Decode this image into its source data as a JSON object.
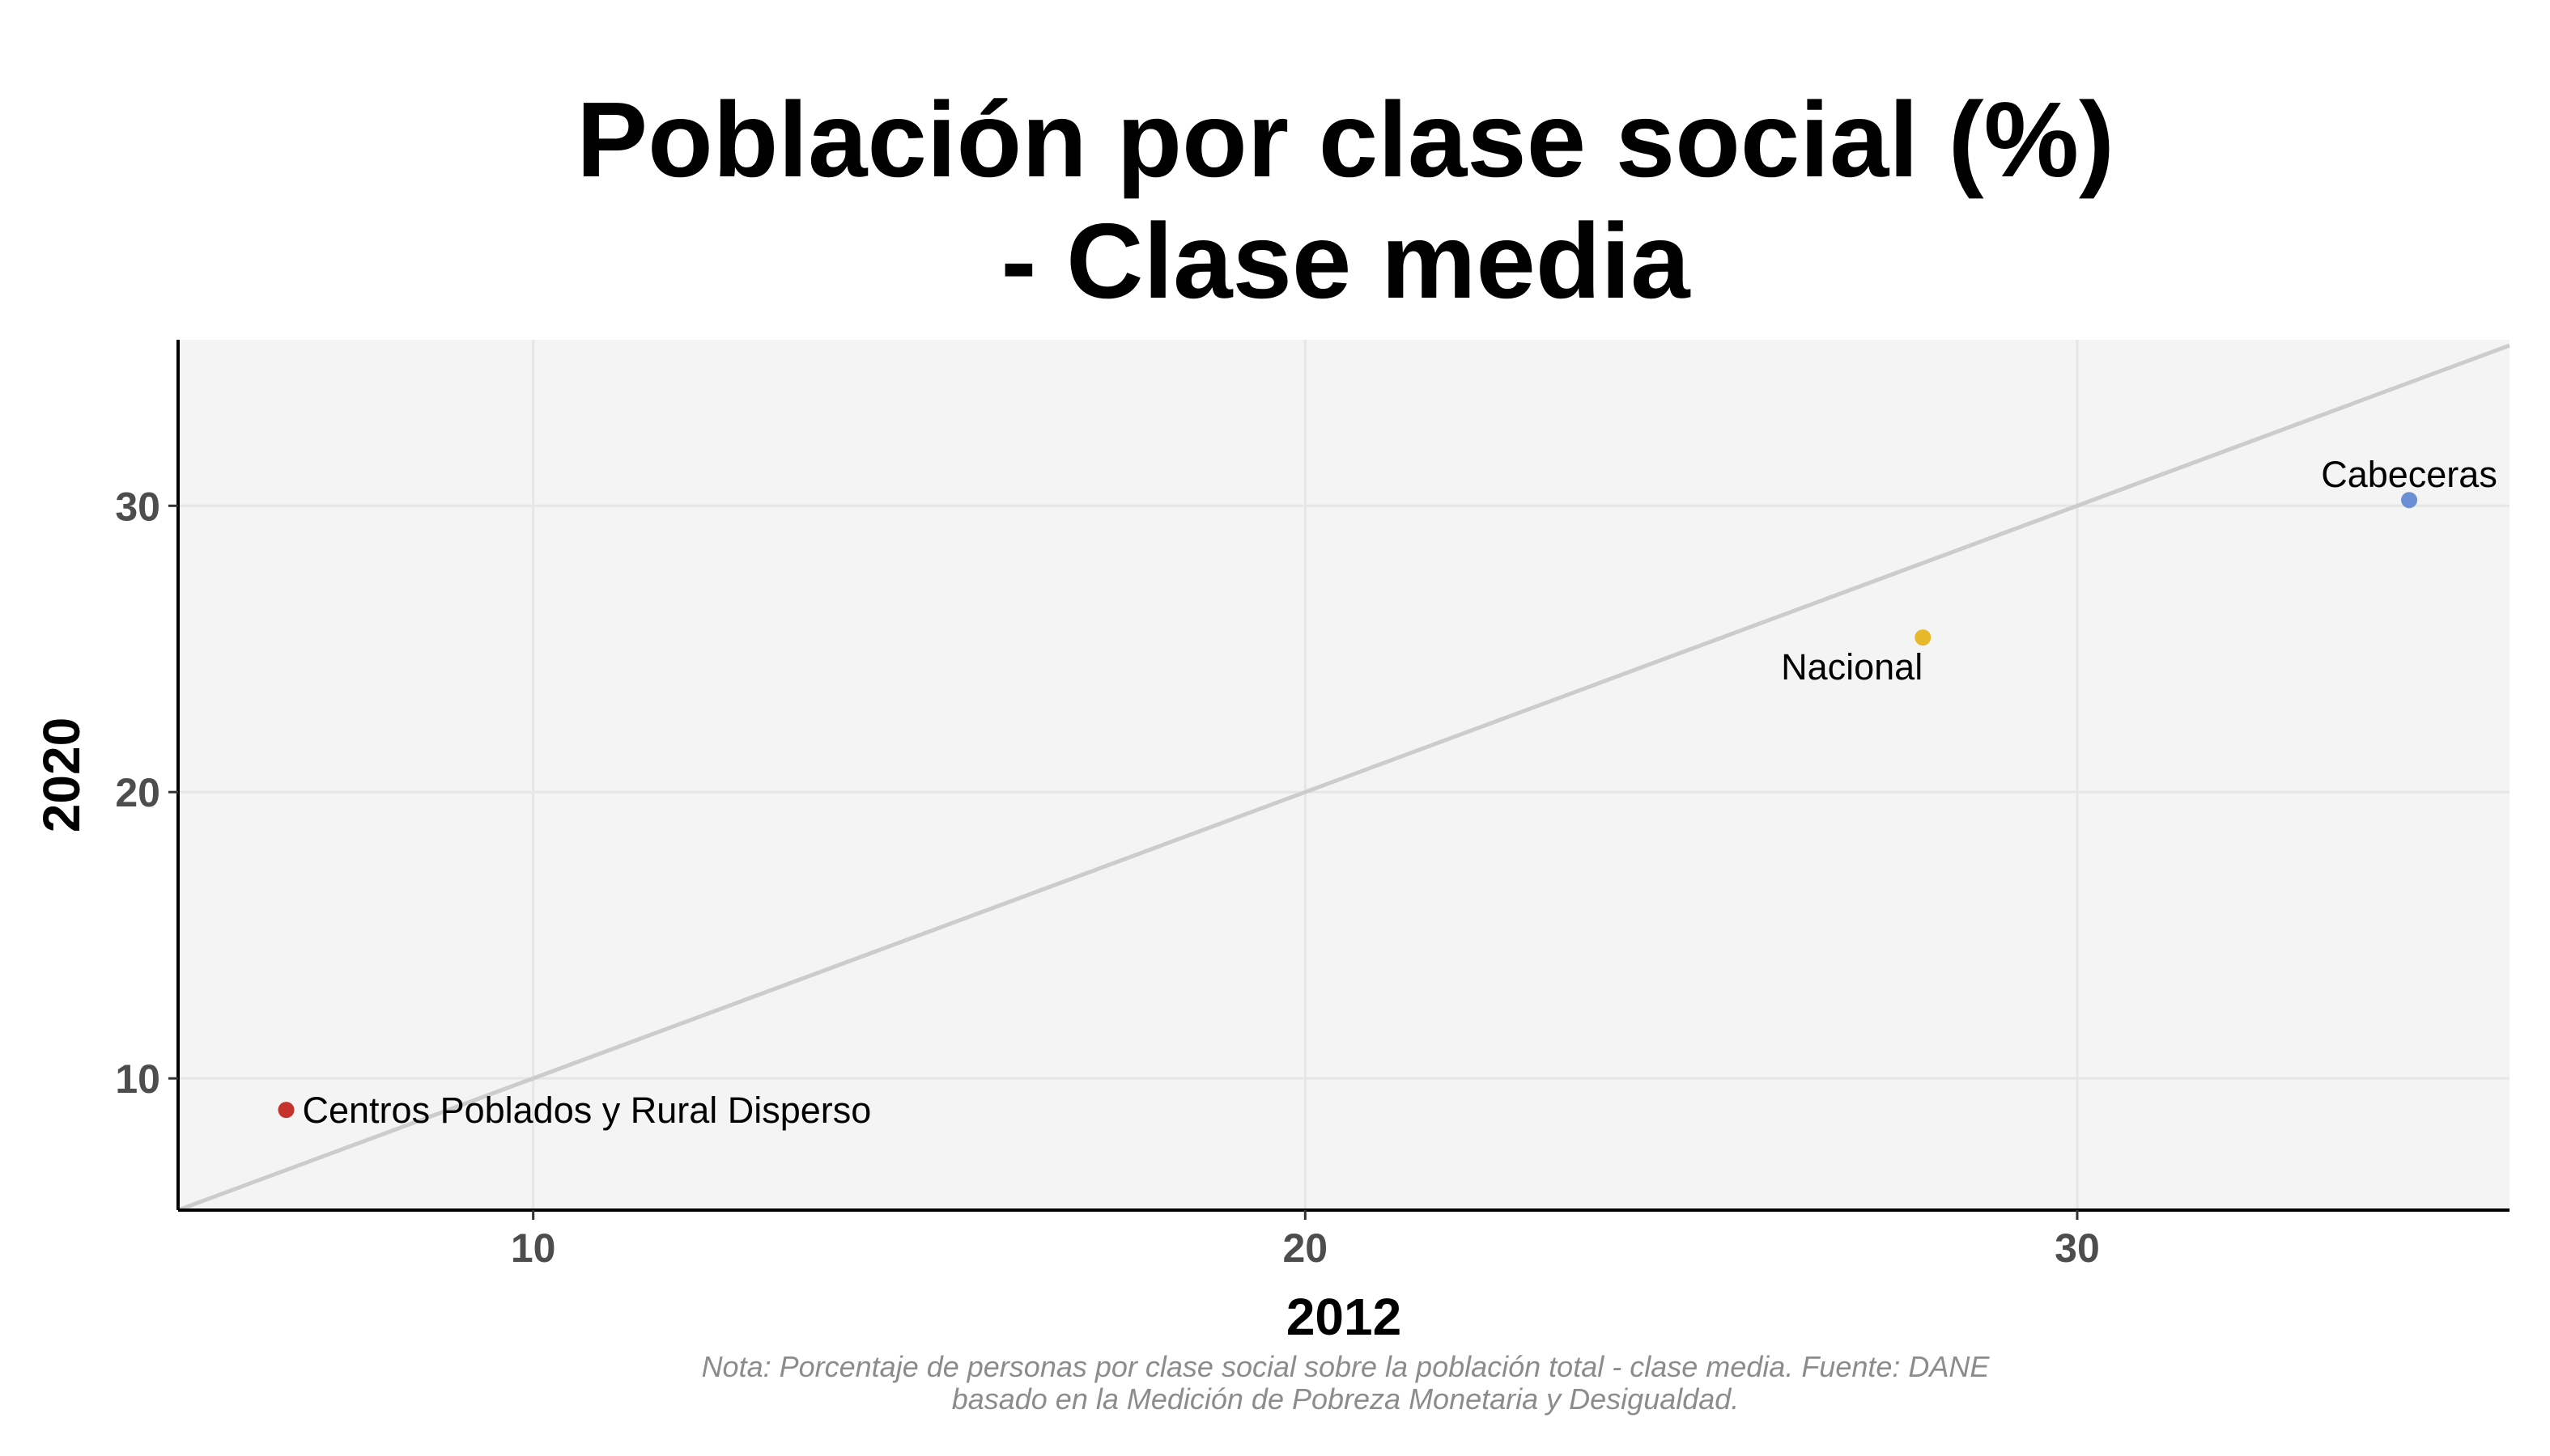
{
  "chart_data": {
    "type": "scatter",
    "title": [
      "Población por clase social (%)",
      "- Clase media"
    ],
    "xlabel": "2012",
    "ylabel": "2020",
    "xlim": [
      5.4,
      35.6
    ],
    "ylim": [
      5.4,
      35.8
    ],
    "xticks": [
      10,
      20,
      30
    ],
    "yticks": [
      10,
      20,
      30
    ],
    "grid": true,
    "reference_line": "y = x",
    "points": [
      {
        "label": "Centros Poblados y Rural Disperso",
        "x": 6.8,
        "y": 8.9,
        "color": "#c4342d",
        "label_position": "right"
      },
      {
        "label": "Nacional",
        "x": 28.0,
        "y": 25.4,
        "color": "#e7b82a",
        "label_position": "below-left"
      },
      {
        "label": "Cabeceras",
        "x": 34.3,
        "y": 30.2,
        "color": "#6a8fd4",
        "label_position": "above"
      }
    ],
    "note": [
      "Nota: Porcentaje de personas por clase social sobre la población total - clase media. Fuente: DANE",
      "basado en la Medición de Pobreza Monetaria y Desigualdad."
    ],
    "colors": {
      "panel_background": "#f4f4f4",
      "grid": "#e6e6e6",
      "reference_line": "#cccccc",
      "axis": "#000000"
    }
  }
}
